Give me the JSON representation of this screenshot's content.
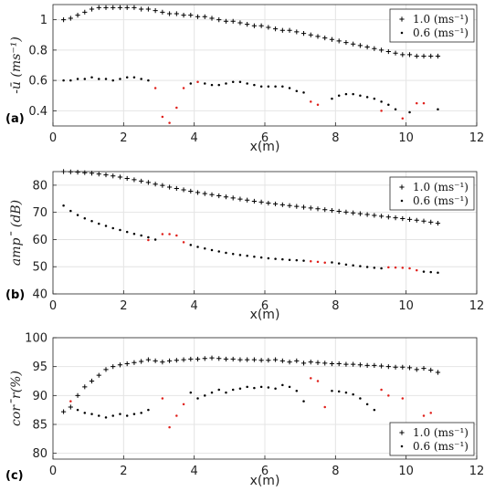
{
  "chart_data": [
    {
      "type": "scatter",
      "panel_label": "(a)",
      "xlabel": "x(m)",
      "ylabel": "-ū (ms⁻¹)",
      "xlim": [
        0,
        12
      ],
      "ylim": [
        0.3,
        1.1
      ],
      "xticks": [
        0,
        2,
        4,
        6,
        8,
        10,
        12
      ],
      "yticks": [
        0.4,
        0.6,
        0.8,
        1.0
      ],
      "ytick_labels": [
        "0.4",
        "0.6",
        "0.8",
        "1"
      ],
      "grid": true,
      "legend_position": "top-right",
      "legend": [
        {
          "label": "1.0 (ms⁻¹)",
          "marker": "plus"
        },
        {
          "label": "0.6 (ms⁻¹)",
          "marker": "dot"
        }
      ],
      "series": [
        {
          "name": "1.0 (ms⁻¹)",
          "marker": "plus",
          "color": "#000000",
          "x": [
            0.3,
            0.5,
            0.7,
            0.9,
            1.1,
            1.3,
            1.5,
            1.7,
            1.9,
            2.1,
            2.3,
            2.5,
            2.7,
            2.9,
            3.1,
            3.3,
            3.5,
            3.7,
            3.9,
            4.1,
            4.3,
            4.5,
            4.7,
            4.9,
            5.1,
            5.3,
            5.5,
            5.7,
            5.9,
            6.1,
            6.3,
            6.5,
            6.7,
            6.9,
            7.1,
            7.3,
            7.5,
            7.7,
            7.9,
            8.1,
            8.3,
            8.5,
            8.7,
            8.9,
            9.1,
            9.3,
            9.5,
            9.7,
            9.9,
            10.1,
            10.3,
            10.5,
            10.7,
            10.9
          ],
          "y": [
            1.0,
            1.01,
            1.03,
            1.05,
            1.07,
            1.08,
            1.08,
            1.08,
            1.08,
            1.08,
            1.08,
            1.07,
            1.07,
            1.06,
            1.05,
            1.04,
            1.04,
            1.03,
            1.03,
            1.02,
            1.02,
            1.01,
            1.0,
            0.99,
            0.99,
            0.98,
            0.97,
            0.96,
            0.96,
            0.95,
            0.94,
            0.93,
            0.93,
            0.92,
            0.91,
            0.9,
            0.89,
            0.88,
            0.87,
            0.86,
            0.85,
            0.84,
            0.83,
            0.82,
            0.81,
            0.8,
            0.79,
            0.78,
            0.77,
            0.77,
            0.76,
            0.76,
            0.76,
            0.76
          ]
        },
        {
          "name": "0.6 (ms⁻¹)",
          "marker": "dot",
          "color": "#000000",
          "x": [
            0.3,
            0.5,
            0.7,
            0.9,
            1.1,
            1.3,
            1.5,
            1.7,
            1.9,
            2.1,
            2.3,
            2.5,
            2.7,
            3.9,
            4.3,
            4.5,
            4.7,
            4.9,
            5.1,
            5.3,
            5.5,
            5.7,
            5.9,
            6.1,
            6.3,
            6.5,
            6.7,
            6.9,
            7.1,
            7.9,
            8.1,
            8.3,
            8.5,
            8.7,
            8.9,
            9.1,
            9.3,
            9.5,
            9.7,
            10.1,
            10.9
          ],
          "y": [
            0.6,
            0.6,
            0.61,
            0.61,
            0.62,
            0.61,
            0.61,
            0.6,
            0.61,
            0.62,
            0.62,
            0.61,
            0.6,
            0.58,
            0.58,
            0.57,
            0.57,
            0.58,
            0.59,
            0.59,
            0.58,
            0.57,
            0.56,
            0.56,
            0.56,
            0.56,
            0.55,
            0.53,
            0.52,
            0.48,
            0.5,
            0.51,
            0.51,
            0.5,
            0.49,
            0.48,
            0.46,
            0.44,
            0.41,
            0.39,
            0.41
          ]
        },
        {
          "name": "",
          "marker": "dot",
          "color": "#e0201b",
          "x": [
            2.9,
            3.1,
            3.3,
            3.5,
            3.7,
            4.1,
            7.3,
            7.5,
            9.3,
            9.9,
            10.3,
            10.5
          ],
          "y": [
            0.55,
            0.36,
            0.32,
            0.42,
            0.55,
            0.59,
            0.46,
            0.44,
            0.4,
            0.35,
            0.45,
            0.45
          ]
        }
      ]
    },
    {
      "type": "scatter",
      "panel_label": "(b)",
      "xlabel": "x(m)",
      "ylabel": "ampˉ (dB)",
      "xlim": [
        0,
        12
      ],
      "ylim": [
        40,
        85
      ],
      "xticks": [
        0,
        2,
        4,
        6,
        8,
        10,
        12
      ],
      "yticks": [
        40,
        50,
        60,
        70,
        80
      ],
      "ytick_labels": [
        "40",
        "50",
        "60",
        "70",
        "80"
      ],
      "grid": true,
      "legend_position": "top-right",
      "legend": [
        {
          "label": "1.0 (ms⁻¹)",
          "marker": "plus"
        },
        {
          "label": "0.6 (ms⁻¹)",
          "marker": "dot"
        }
      ],
      "series": [
        {
          "name": "1.0 (ms⁻¹)",
          "marker": "plus",
          "color": "#000000",
          "x": [
            0.3,
            0.5,
            0.7,
            0.9,
            1.1,
            1.3,
            1.5,
            1.7,
            1.9,
            2.1,
            2.3,
            2.5,
            2.7,
            2.9,
            3.1,
            3.3,
            3.5,
            3.7,
            3.9,
            4.1,
            4.3,
            4.5,
            4.7,
            4.9,
            5.1,
            5.3,
            5.5,
            5.7,
            5.9,
            6.1,
            6.3,
            6.5,
            6.7,
            6.9,
            7.1,
            7.3,
            7.5,
            7.7,
            7.9,
            8.1,
            8.3,
            8.5,
            8.7,
            8.9,
            9.1,
            9.3,
            9.5,
            9.7,
            9.9,
            10.1,
            10.3,
            10.5,
            10.7,
            10.9
          ],
          "y": [
            85.0,
            84.9,
            84.8,
            84.6,
            84.4,
            84.1,
            83.8,
            83.4,
            83.0,
            82.5,
            82.0,
            81.5,
            81.0,
            80.4,
            79.9,
            79.3,
            78.8,
            78.3,
            77.8,
            77.3,
            76.9,
            76.5,
            76.1,
            75.7,
            75.3,
            74.9,
            74.5,
            74.1,
            73.8,
            73.4,
            73.1,
            72.8,
            72.5,
            72.2,
            71.9,
            71.6,
            71.3,
            71.0,
            70.7,
            70.4,
            70.1,
            69.8,
            69.5,
            69.2,
            68.9,
            68.6,
            68.3,
            68.0,
            67.7,
            67.4,
            67.1,
            66.8,
            66.4,
            66.0
          ]
        },
        {
          "name": "0.6 (ms⁻¹)",
          "marker": "dot",
          "color": "#000000",
          "x": [
            0.3,
            0.5,
            0.7,
            0.9,
            1.1,
            1.3,
            1.5,
            1.7,
            1.9,
            2.1,
            2.3,
            2.5,
            2.7,
            2.9,
            3.9,
            4.1,
            4.3,
            4.5,
            4.7,
            4.9,
            5.1,
            5.3,
            5.5,
            5.7,
            5.9,
            6.1,
            6.3,
            6.5,
            6.7,
            6.9,
            7.1,
            7.9,
            8.1,
            8.3,
            8.5,
            8.7,
            8.9,
            9.1,
            9.3,
            10.5,
            10.7,
            10.9
          ],
          "y": [
            72.5,
            70.5,
            69.0,
            67.8,
            66.8,
            65.8,
            65.0,
            64.2,
            63.5,
            62.8,
            62.1,
            61.5,
            60.8,
            60.0,
            58.0,
            57.3,
            56.7,
            56.1,
            55.6,
            55.1,
            54.7,
            54.3,
            54.0,
            53.7,
            53.4,
            53.1,
            52.9,
            52.7,
            52.5,
            52.4,
            52.2,
            51.6,
            51.2,
            50.8,
            50.5,
            50.2,
            49.9,
            49.6,
            49.4,
            48.2,
            48.0,
            47.8
          ]
        },
        {
          "name": "",
          "marker": "dot",
          "color": "#e0201b",
          "x": [
            2.7,
            3.1,
            3.3,
            3.5,
            3.7,
            7.3,
            7.5,
            7.7,
            9.5,
            9.7,
            9.9,
            10.1,
            10.3
          ],
          "y": [
            59.8,
            62.0,
            62.0,
            61.5,
            59.0,
            52.0,
            51.8,
            51.5,
            49.8,
            49.7,
            49.6,
            49.4,
            48.7
          ]
        }
      ]
    },
    {
      "type": "scatter",
      "panel_label": "(c)",
      "xlabel": "x(m)",
      "ylabel": "corˉr(%)",
      "xlim": [
        0,
        12
      ],
      "ylim": [
        79,
        100
      ],
      "xticks": [
        0,
        2,
        4,
        6,
        8,
        10,
        12
      ],
      "yticks": [
        80,
        85,
        90,
        95,
        100
      ],
      "ytick_labels": [
        "80",
        "85",
        "90",
        "95",
        "100"
      ],
      "grid": true,
      "legend_position": "bottom-right",
      "legend": [
        {
          "label": "1.0 (ms⁻¹)",
          "marker": "plus"
        },
        {
          "label": "0.6 (ms⁻¹)",
          "marker": "dot"
        }
      ],
      "series": [
        {
          "name": "1.0 (ms⁻¹)",
          "marker": "plus",
          "color": "#000000",
          "x": [
            0.3,
            0.5,
            0.7,
            0.9,
            1.1,
            1.3,
            1.5,
            1.7,
            1.9,
            2.1,
            2.3,
            2.5,
            2.7,
            2.9,
            3.1,
            3.3,
            3.5,
            3.7,
            3.9,
            4.1,
            4.3,
            4.5,
            4.7,
            4.9,
            5.1,
            5.3,
            5.5,
            5.7,
            5.9,
            6.1,
            6.3,
            6.5,
            6.7,
            6.9,
            7.1,
            7.3,
            7.5,
            7.7,
            7.9,
            8.1,
            8.3,
            8.5,
            8.7,
            8.9,
            9.1,
            9.3,
            9.5,
            9.7,
            9.9,
            10.1,
            10.3,
            10.5,
            10.7,
            10.9
          ],
          "y": [
            87.2,
            88.0,
            90.0,
            91.5,
            92.5,
            93.5,
            94.5,
            95.0,
            95.3,
            95.5,
            95.7,
            95.9,
            96.2,
            96.0,
            95.8,
            96.0,
            96.1,
            96.2,
            96.3,
            96.3,
            96.4,
            96.5,
            96.4,
            96.3,
            96.3,
            96.2,
            96.2,
            96.2,
            96.1,
            96.1,
            96.2,
            96.0,
            95.8,
            96.0,
            95.6,
            95.8,
            95.7,
            95.6,
            95.5,
            95.5,
            95.4,
            95.4,
            95.3,
            95.2,
            95.2,
            95.1,
            95.0,
            94.9,
            94.9,
            94.8,
            94.5,
            94.7,
            94.4,
            94.0
          ]
        },
        {
          "name": "0.6 (ms⁻¹)",
          "marker": "dot",
          "color": "#000000",
          "x": [
            0.7,
            0.9,
            1.1,
            1.3,
            1.5,
            1.7,
            1.9,
            2.1,
            2.3,
            2.5,
            2.7,
            3.9,
            4.1,
            4.3,
            4.5,
            4.7,
            4.9,
            5.1,
            5.3,
            5.5,
            5.7,
            5.9,
            6.1,
            6.3,
            6.5,
            6.7,
            6.9,
            7.1,
            7.9,
            8.1,
            8.3,
            8.5,
            8.7,
            8.9,
            9.1
          ],
          "y": [
            87.5,
            87.0,
            86.8,
            86.5,
            86.2,
            86.5,
            86.8,
            86.5,
            86.8,
            87.0,
            87.5,
            90.5,
            89.5,
            90.0,
            90.5,
            91.0,
            90.5,
            91.0,
            91.2,
            91.5,
            91.3,
            91.5,
            91.4,
            91.2,
            91.8,
            91.5,
            90.8,
            89.0,
            90.8,
            90.7,
            90.5,
            90.2,
            89.5,
            88.5,
            87.5
          ]
        },
        {
          "name": "",
          "marker": "dot",
          "color": "#e0201b",
          "x": [
            0.5,
            3.1,
            3.3,
            3.5,
            3.7,
            7.3,
            7.5,
            7.7,
            9.3,
            9.5,
            9.9,
            10.5,
            10.7
          ],
          "y": [
            89.0,
            89.5,
            84.5,
            86.5,
            88.5,
            93.0,
            92.5,
            88.0,
            91.0,
            90.0,
            89.5,
            86.5,
            87.0
          ]
        }
      ]
    }
  ]
}
